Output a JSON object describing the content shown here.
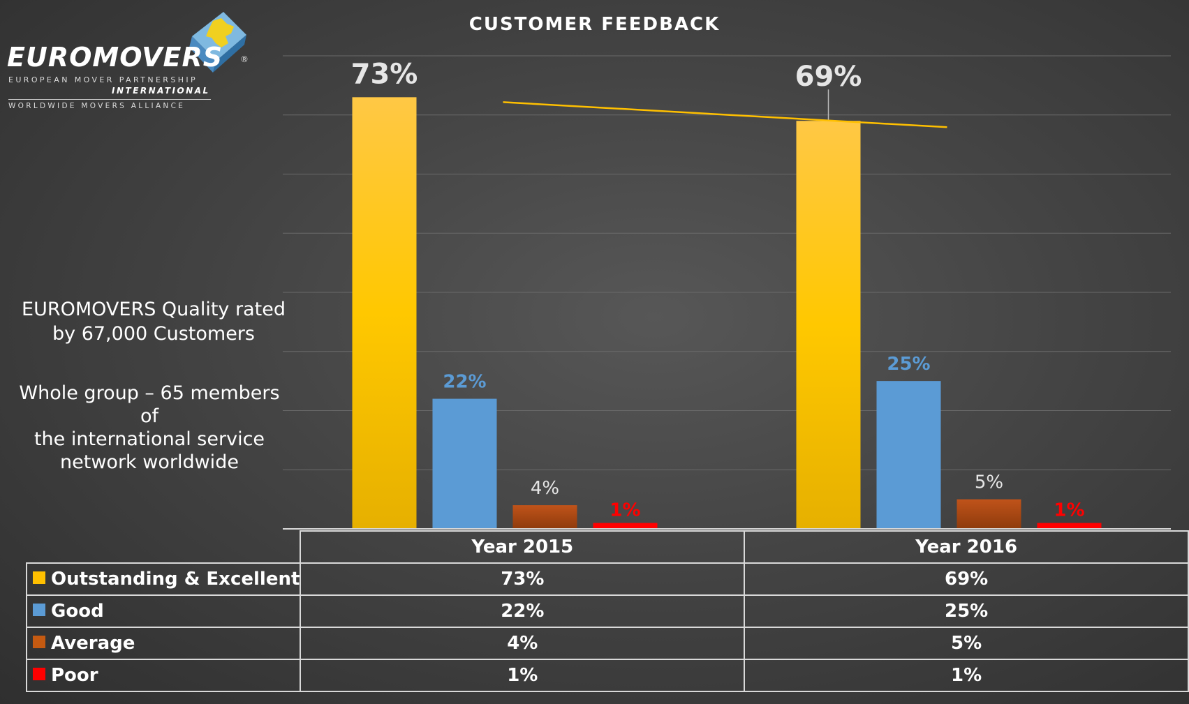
{
  "logo": {
    "name": "EUROMOVERS",
    "line1": "EUROPEAN MOVER PARTNERSHIP",
    "line2": "INTERNATIONAL",
    "line3": "WORLDWIDE MOVERS ALLIANCE",
    "registered": "®"
  },
  "side_text": {
    "p1_line1": "EUROMOVERS Quality rated",
    "p1_line2": "by 67,000 Customers",
    "p2_line1": "Whole group – 65 members of",
    "p2_line2": "the international service",
    "p2_line3": "network worldwide"
  },
  "colors": {
    "outstanding": "#FFC000",
    "good": "#5B9BD5",
    "average": "#C55A11",
    "poor": "#FF0000",
    "trendline": "#FFC000",
    "gridline": "#6a6a6a"
  },
  "chart_data": {
    "type": "bar",
    "title": "CUSTOMER FEEDBACK",
    "categories": [
      "Year 2015",
      "Year 2016"
    ],
    "series": [
      {
        "name": "Outstanding & Excellent",
        "values": [
          73,
          69
        ],
        "labels": [
          "73%",
          "69%"
        ]
      },
      {
        "name": "Good",
        "values": [
          22,
          25
        ],
        "labels": [
          "22%",
          "25%"
        ]
      },
      {
        "name": "Average",
        "values": [
          4,
          5
        ],
        "labels": [
          "4%",
          "5%"
        ]
      },
      {
        "name": "Poor",
        "values": [
          1,
          1
        ],
        "labels": [
          "1%",
          "1%"
        ]
      }
    ],
    "ylim": [
      0,
      80
    ],
    "grid": true,
    "trendline": "linear, Outstanding & Excellent",
    "legend": "data table below chart"
  }
}
